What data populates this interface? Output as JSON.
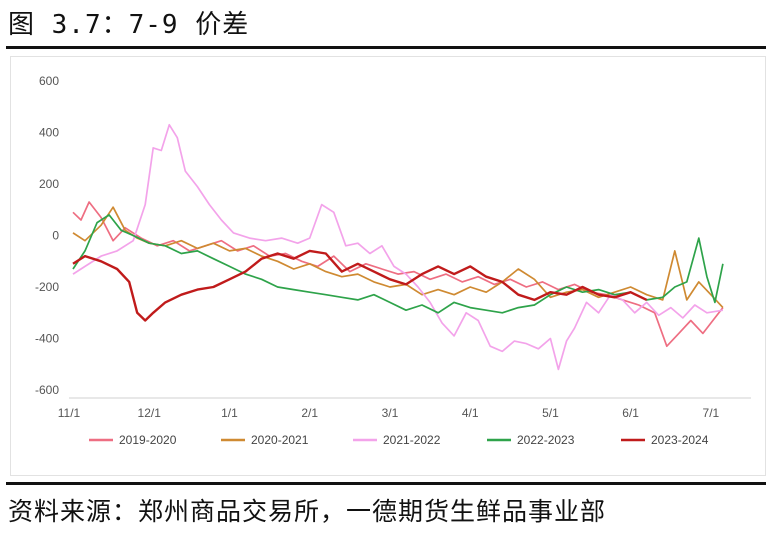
{
  "figure_title": "图 3.7：7-9 价差",
  "source": "资料来源：郑州商品交易所，一德期货生鲜品事业部",
  "chart_data": {
    "type": "line",
    "title": "",
    "xlabel": "",
    "ylabel": "",
    "ylim": [
      -600,
      600
    ],
    "yticks": [
      600,
      400,
      200,
      0,
      -200,
      -400,
      -600
    ],
    "xlim": [
      0,
      8.5
    ],
    "xtick_labels": [
      "11/1",
      "12/1",
      "1/1",
      "2/1",
      "3/1",
      "4/1",
      "5/1",
      "6/1",
      "7/1"
    ],
    "grid": false,
    "legend_position": "bottom",
    "series": [
      {
        "name": "2019-2020",
        "color": "#ee6e82",
        "points": [
          [
            0.05,
            90
          ],
          [
            0.15,
            60
          ],
          [
            0.25,
            130
          ],
          [
            0.4,
            70
          ],
          [
            0.55,
            -20
          ],
          [
            0.7,
            30
          ],
          [
            0.9,
            -10
          ],
          [
            1.1,
            -40
          ],
          [
            1.3,
            -20
          ],
          [
            1.5,
            -60
          ],
          [
            1.7,
            -40
          ],
          [
            1.9,
            -20
          ],
          [
            2.1,
            -60
          ],
          [
            2.3,
            -40
          ],
          [
            2.5,
            -80
          ],
          [
            2.7,
            -70
          ],
          [
            2.9,
            -100
          ],
          [
            3.1,
            -120
          ],
          [
            3.3,
            -80
          ],
          [
            3.5,
            -140
          ],
          [
            3.7,
            -110
          ],
          [
            3.9,
            -130
          ],
          [
            4.1,
            -150
          ],
          [
            4.3,
            -140
          ],
          [
            4.5,
            -170
          ],
          [
            4.7,
            -150
          ],
          [
            4.9,
            -180
          ],
          [
            5.1,
            -160
          ],
          [
            5.3,
            -190
          ],
          [
            5.5,
            -170
          ],
          [
            5.7,
            -200
          ],
          [
            5.9,
            -180
          ],
          [
            6.1,
            -210
          ],
          [
            6.3,
            -190
          ],
          [
            6.5,
            -220
          ],
          [
            6.7,
            -230
          ],
          [
            6.9,
            -250
          ],
          [
            7.1,
            -270
          ],
          [
            7.3,
            -300
          ],
          [
            7.45,
            -430
          ],
          [
            7.6,
            -380
          ],
          [
            7.75,
            -330
          ],
          [
            7.9,
            -380
          ],
          [
            8.05,
            -320
          ],
          [
            8.15,
            -280
          ]
        ]
      },
      {
        "name": "2020-2021",
        "color": "#cf8a32",
        "points": [
          [
            0.05,
            10
          ],
          [
            0.2,
            -20
          ],
          [
            0.4,
            40
          ],
          [
            0.55,
            110
          ],
          [
            0.7,
            20
          ],
          [
            0.85,
            -10
          ],
          [
            1.0,
            -30
          ],
          [
            1.2,
            -40
          ],
          [
            1.4,
            -20
          ],
          [
            1.6,
            -50
          ],
          [
            1.8,
            -30
          ],
          [
            2.0,
            -60
          ],
          [
            2.2,
            -50
          ],
          [
            2.4,
            -80
          ],
          [
            2.6,
            -100
          ],
          [
            2.8,
            -130
          ],
          [
            3.0,
            -110
          ],
          [
            3.2,
            -140
          ],
          [
            3.4,
            -160
          ],
          [
            3.6,
            -150
          ],
          [
            3.8,
            -180
          ],
          [
            4.0,
            -200
          ],
          [
            4.2,
            -190
          ],
          [
            4.4,
            -230
          ],
          [
            4.6,
            -210
          ],
          [
            4.8,
            -230
          ],
          [
            5.0,
            -200
          ],
          [
            5.2,
            -220
          ],
          [
            5.4,
            -180
          ],
          [
            5.6,
            -130
          ],
          [
            5.8,
            -170
          ],
          [
            6.0,
            -240
          ],
          [
            6.2,
            -220
          ],
          [
            6.4,
            -210
          ],
          [
            6.6,
            -240
          ],
          [
            6.8,
            -220
          ],
          [
            7.0,
            -200
          ],
          [
            7.2,
            -230
          ],
          [
            7.4,
            -250
          ],
          [
            7.55,
            -60
          ],
          [
            7.7,
            -250
          ],
          [
            7.85,
            -180
          ],
          [
            8.0,
            -230
          ],
          [
            8.15,
            -280
          ]
        ]
      },
      {
        "name": "2021-2022",
        "color": "#f3a3ea",
        "points": [
          [
            0.05,
            -150
          ],
          [
            0.2,
            -120
          ],
          [
            0.4,
            -80
          ],
          [
            0.6,
            -60
          ],
          [
            0.8,
            -20
          ],
          [
            0.95,
            120
          ],
          [
            1.05,
            340
          ],
          [
            1.15,
            330
          ],
          [
            1.25,
            430
          ],
          [
            1.35,
            380
          ],
          [
            1.45,
            250
          ],
          [
            1.6,
            190
          ],
          [
            1.75,
            120
          ],
          [
            1.9,
            60
          ],
          [
            2.05,
            10
          ],
          [
            2.25,
            -10
          ],
          [
            2.45,
            -20
          ],
          [
            2.65,
            -10
          ],
          [
            2.85,
            -30
          ],
          [
            3.0,
            -10
          ],
          [
            3.15,
            120
          ],
          [
            3.3,
            90
          ],
          [
            3.45,
            -40
          ],
          [
            3.6,
            -30
          ],
          [
            3.75,
            -70
          ],
          [
            3.9,
            -40
          ],
          [
            4.05,
            -120
          ],
          [
            4.2,
            -150
          ],
          [
            4.35,
            -200
          ],
          [
            4.5,
            -260
          ],
          [
            4.65,
            -340
          ],
          [
            4.8,
            -390
          ],
          [
            4.95,
            -300
          ],
          [
            5.1,
            -330
          ],
          [
            5.25,
            -430
          ],
          [
            5.4,
            -450
          ],
          [
            5.55,
            -410
          ],
          [
            5.7,
            -420
          ],
          [
            5.85,
            -440
          ],
          [
            6.0,
            -400
          ],
          [
            6.1,
            -520
          ],
          [
            6.2,
            -410
          ],
          [
            6.3,
            -360
          ],
          [
            6.45,
            -260
          ],
          [
            6.6,
            -300
          ],
          [
            6.75,
            -230
          ],
          [
            6.9,
            -250
          ],
          [
            7.05,
            -300
          ],
          [
            7.2,
            -260
          ],
          [
            7.35,
            -310
          ],
          [
            7.5,
            -280
          ],
          [
            7.65,
            -320
          ],
          [
            7.8,
            -270
          ],
          [
            7.95,
            -300
          ],
          [
            8.15,
            -290
          ]
        ]
      },
      {
        "name": "2022-2023",
        "color": "#2ea34a",
        "points": [
          [
            0.05,
            -130
          ],
          [
            0.2,
            -60
          ],
          [
            0.35,
            50
          ],
          [
            0.5,
            80
          ],
          [
            0.65,
            20
          ],
          [
            0.8,
            0
          ],
          [
            1.0,
            -30
          ],
          [
            1.2,
            -40
          ],
          [
            1.4,
            -70
          ],
          [
            1.6,
            -60
          ],
          [
            1.8,
            -90
          ],
          [
            2.0,
            -120
          ],
          [
            2.2,
            -150
          ],
          [
            2.4,
            -170
          ],
          [
            2.6,
            -200
          ],
          [
            2.8,
            -210
          ],
          [
            3.0,
            -220
          ],
          [
            3.2,
            -230
          ],
          [
            3.4,
            -240
          ],
          [
            3.6,
            -250
          ],
          [
            3.8,
            -230
          ],
          [
            4.0,
            -260
          ],
          [
            4.2,
            -290
          ],
          [
            4.4,
            -270
          ],
          [
            4.6,
            -300
          ],
          [
            4.8,
            -260
          ],
          [
            5.0,
            -280
          ],
          [
            5.2,
            -290
          ],
          [
            5.4,
            -300
          ],
          [
            5.6,
            -280
          ],
          [
            5.8,
            -270
          ],
          [
            6.0,
            -230
          ],
          [
            6.2,
            -200
          ],
          [
            6.4,
            -220
          ],
          [
            6.6,
            -210
          ],
          [
            6.8,
            -230
          ],
          [
            7.0,
            -220
          ],
          [
            7.2,
            -250
          ],
          [
            7.4,
            -240
          ],
          [
            7.55,
            -200
          ],
          [
            7.7,
            -180
          ],
          [
            7.85,
            -10
          ],
          [
            7.95,
            -160
          ],
          [
            8.05,
            -260
          ],
          [
            8.15,
            -110
          ]
        ]
      },
      {
        "name": "2023-2024",
        "color": "#c01b1b",
        "points": [
          [
            0.05,
            -110
          ],
          [
            0.2,
            -80
          ],
          [
            0.4,
            -100
          ],
          [
            0.6,
            -130
          ],
          [
            0.75,
            -180
          ],
          [
            0.85,
            -300
          ],
          [
            0.95,
            -330
          ],
          [
            1.05,
            -300
          ],
          [
            1.2,
            -260
          ],
          [
            1.4,
            -230
          ],
          [
            1.6,
            -210
          ],
          [
            1.8,
            -200
          ],
          [
            2.0,
            -170
          ],
          [
            2.2,
            -140
          ],
          [
            2.4,
            -90
          ],
          [
            2.6,
            -70
          ],
          [
            2.8,
            -90
          ],
          [
            3.0,
            -60
          ],
          [
            3.2,
            -70
          ],
          [
            3.4,
            -140
          ],
          [
            3.6,
            -110
          ],
          [
            3.8,
            -140
          ],
          [
            4.0,
            -170
          ],
          [
            4.2,
            -190
          ],
          [
            4.4,
            -150
          ],
          [
            4.6,
            -120
          ],
          [
            4.8,
            -150
          ],
          [
            5.0,
            -120
          ],
          [
            5.2,
            -160
          ],
          [
            5.4,
            -180
          ],
          [
            5.6,
            -230
          ],
          [
            5.8,
            -250
          ],
          [
            6.0,
            -220
          ],
          [
            6.2,
            -230
          ],
          [
            6.4,
            -200
          ],
          [
            6.6,
            -230
          ],
          [
            6.8,
            -240
          ],
          [
            7.0,
            -220
          ],
          [
            7.2,
            -250
          ]
        ]
      }
    ]
  }
}
